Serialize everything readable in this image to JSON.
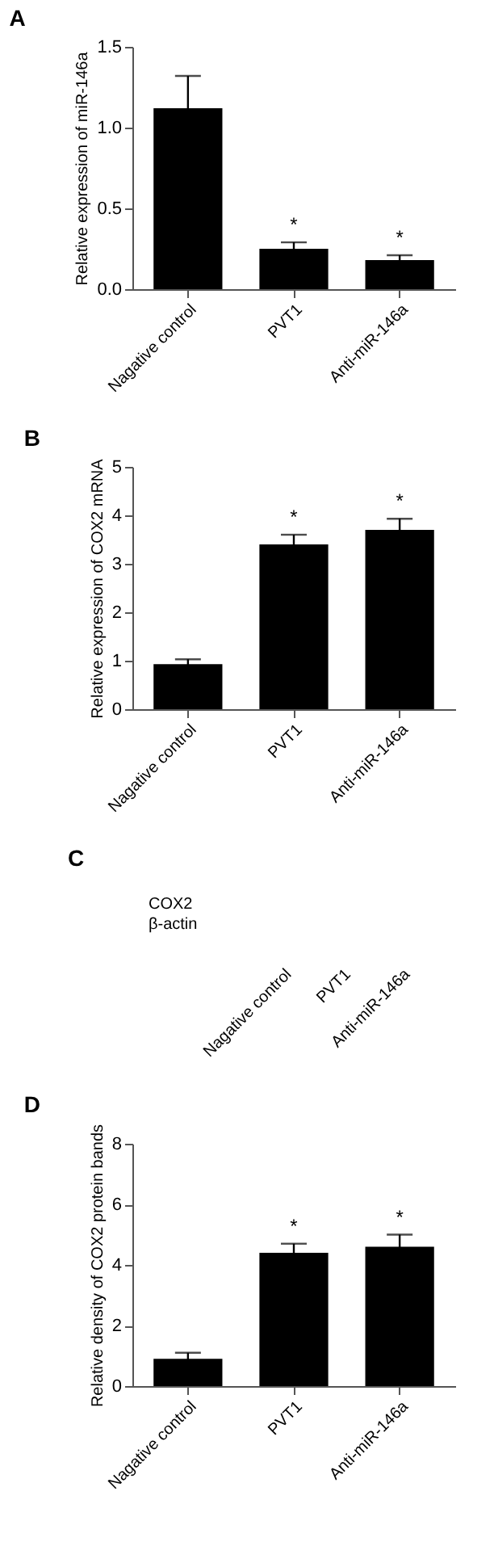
{
  "chart_data": [
    {
      "type": "bar",
      "title": "A",
      "ylabel": "Relative expression of miR-146a",
      "categories": [
        "Nagative control",
        "PVT1",
        "Anti-miR-146a"
      ],
      "values": [
        1.12,
        0.25,
        0.18
      ],
      "errors": [
        0.2,
        0.04,
        0.03
      ],
      "color": "#000000",
      "ylim": [
        0,
        1.5
      ],
      "yticks": [
        {
          "value": 0,
          "label": "0.0"
        },
        {
          "value": 0.5,
          "label": "0.5"
        },
        {
          "value": 1,
          "label": "1.0"
        },
        {
          "value": 1.5,
          "label": "1.5"
        }
      ],
      "grid": false,
      "annotations": [
        {
          "text": "*",
          "x": "PVT1",
          "y": 0.29
        },
        {
          "text": "*",
          "x": "Anti-miR-146a",
          "y": 0.21
        }
      ]
    },
    {
      "type": "bar",
      "title": "B",
      "ylabel": "Relative expression of COX2 mRNA",
      "categories": [
        "Nagative control",
        "PVT1",
        "Anti-miR-146a"
      ],
      "values": [
        0.93,
        3.4,
        3.7
      ],
      "errors": [
        0.1,
        0.2,
        0.23
      ],
      "color": "#000000",
      "ylim": [
        0,
        5
      ],
      "yticks": [
        0,
        1,
        2,
        3,
        4,
        5
      ],
      "grid": false,
      "annotations": [
        {
          "text": "*",
          "x": "PVT1",
          "y": 3.6
        },
        {
          "text": "*",
          "x": "Anti-miR-146a",
          "y": 3.93
        }
      ]
    },
    {
      "type": "other",
      "title": "C",
      "categories": [
        "Nagative control",
        "PVT1",
        "Anti-miR-146a"
      ],
      "annotations": [
        "COX2",
        "β-actin"
      ]
    },
    {
      "type": "bar",
      "title": "D",
      "ylabel": "Relative density of COX2 protein bands",
      "categories": [
        "Nagative control",
        "PVT1",
        "Anti-miR-146a"
      ],
      "values": [
        0.9,
        4.4,
        4.6
      ],
      "errors": [
        0.2,
        0.3,
        0.4
      ],
      "color": "#000000",
      "ylim": [
        0,
        8
      ],
      "yticks": [
        0,
        2,
        4,
        6,
        8
      ],
      "grid": false,
      "annotations": [
        {
          "text": "*",
          "x": "PVT1",
          "y": 4.7
        },
        {
          "text": "*",
          "x": "Anti-miR-146a",
          "y": 5.0
        }
      ]
    }
  ]
}
